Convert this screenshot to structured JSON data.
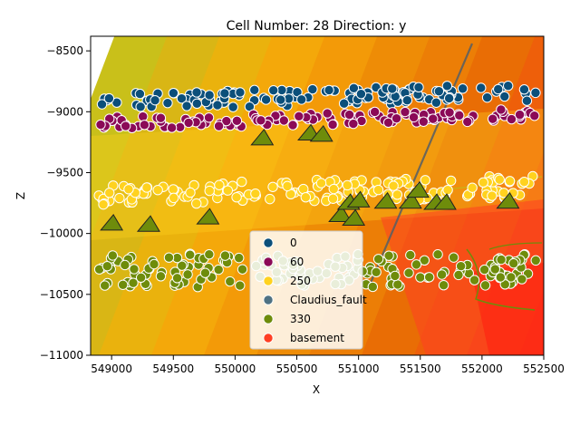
{
  "chart_data": {
    "type": "scatter",
    "title": "Cell Number: 28 Direction: y",
    "xlabel": "X",
    "ylabel": "Z",
    "xlim": [
      548830,
      552500
    ],
    "ylim": [
      -11000,
      -8380
    ],
    "xticks": [
      549000,
      549500,
      550000,
      550500,
      551000,
      551500,
      552000,
      552500
    ],
    "yticks": [
      -8500,
      -9000,
      -9500,
      -10000,
      -10500,
      -11000
    ],
    "legend_position": "lower-center",
    "legend": [
      {
        "name": "0",
        "color": "#0b4f7a"
      },
      {
        "name": "60",
        "color": "#8b0a57"
      },
      {
        "name": "250",
        "color": "#ffd21f"
      },
      {
        "name": "Claudius_fault",
        "color": "#4f7283"
      },
      {
        "name": "330",
        "color": "#6e8c0b"
      },
      {
        "name": "basement",
        "color": "#ff3f23"
      }
    ],
    "layer_bands": [
      {
        "name": "0",
        "z_approx": -8880,
        "spread": 70
      },
      {
        "name": "60",
        "z_approx": -9060,
        "spread": 50
      },
      {
        "name": "250",
        "z_approx": -9650,
        "spread": 90
      },
      {
        "name": "330",
        "z_approx": -10300,
        "spread": 140
      }
    ],
    "fault_line": {
      "name": "Claudius_fault",
      "x": [
        551100,
        551920
      ],
      "z": [
        -10400,
        -8440
      ]
    },
    "orientation_markers": [
      {
        "x": 549000,
        "z": -9920
      },
      {
        "x": 549300,
        "z": -9930
      },
      {
        "x": 549780,
        "z": -9870
      },
      {
        "x": 550220,
        "z": -9220
      },
      {
        "x": 550600,
        "z": -9180
      },
      {
        "x": 550700,
        "z": -9190
      },
      {
        "x": 550850,
        "z": -9850
      },
      {
        "x": 550920,
        "z": -9750
      },
      {
        "x": 551000,
        "z": -9730
      },
      {
        "x": 550960,
        "z": -9880
      },
      {
        "x": 551220,
        "z": -9740
      },
      {
        "x": 551420,
        "z": -9740
      },
      {
        "x": 551480,
        "z": -9650
      },
      {
        "x": 551620,
        "z": -9750
      },
      {
        "x": 551700,
        "z": -9750
      },
      {
        "x": 552210,
        "z": -9740
      }
    ]
  }
}
